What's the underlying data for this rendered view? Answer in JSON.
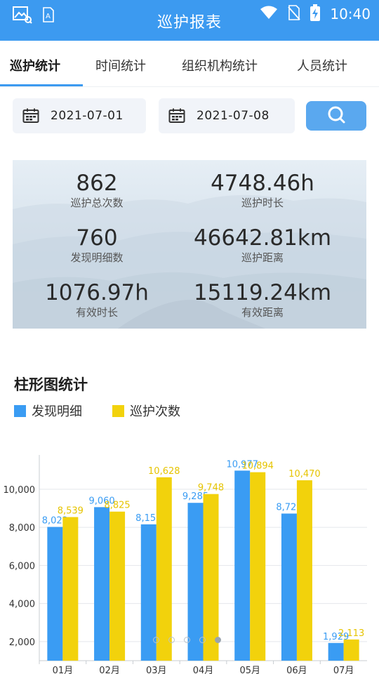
{
  "status_bar": {
    "time": "10:40"
  },
  "app": {
    "title": "巡护报表"
  },
  "tabs": [
    {
      "label": "巡护统计"
    },
    {
      "label": "时间统计"
    },
    {
      "label": "组织机构统计"
    },
    {
      "label": "人员统计"
    }
  ],
  "filters": {
    "start_date": "2021-07-01",
    "end_date": "2021-07-08"
  },
  "stats": [
    {
      "value": "862",
      "label": "巡护总次数"
    },
    {
      "value": "4748.46h",
      "label": "巡护时长"
    },
    {
      "value": "760",
      "label": "发现明细数"
    },
    {
      "value": "46642.81km",
      "label": "巡护距离"
    },
    {
      "value": "1076.97h",
      "label": "有效时长"
    },
    {
      "value": "15119.24km",
      "label": "有效距离"
    }
  ],
  "section": {
    "title": "柱形图统计"
  },
  "colors": {
    "accent": "#3c9af0",
    "series_blue": "#3a9cf3",
    "series_yellow": "#f2d20c"
  },
  "chart_data": {
    "type": "bar",
    "categories": [
      "01月",
      "02月",
      "03月",
      "04月",
      "05月",
      "06月",
      "07月"
    ],
    "series": [
      {
        "name": "发现明细",
        "values": [
          8022,
          9060,
          8157,
          9285,
          10977,
          8723,
          1929
        ]
      },
      {
        "name": "巡护次数",
        "values": [
          8539,
          8825,
          10628,
          9748,
          10894,
          10470,
          2113
        ]
      }
    ],
    "y_ticks": [
      2000,
      4000,
      6000,
      8000,
      10000
    ],
    "y_tick_labels": [
      "2,000",
      "4,000",
      "6,000",
      "8,000",
      "10,000"
    ],
    "ylim": [
      1000,
      11800
    ],
    "legend_position": "top-left",
    "grid": true
  },
  "pager": {
    "count": 5,
    "active": 4
  }
}
